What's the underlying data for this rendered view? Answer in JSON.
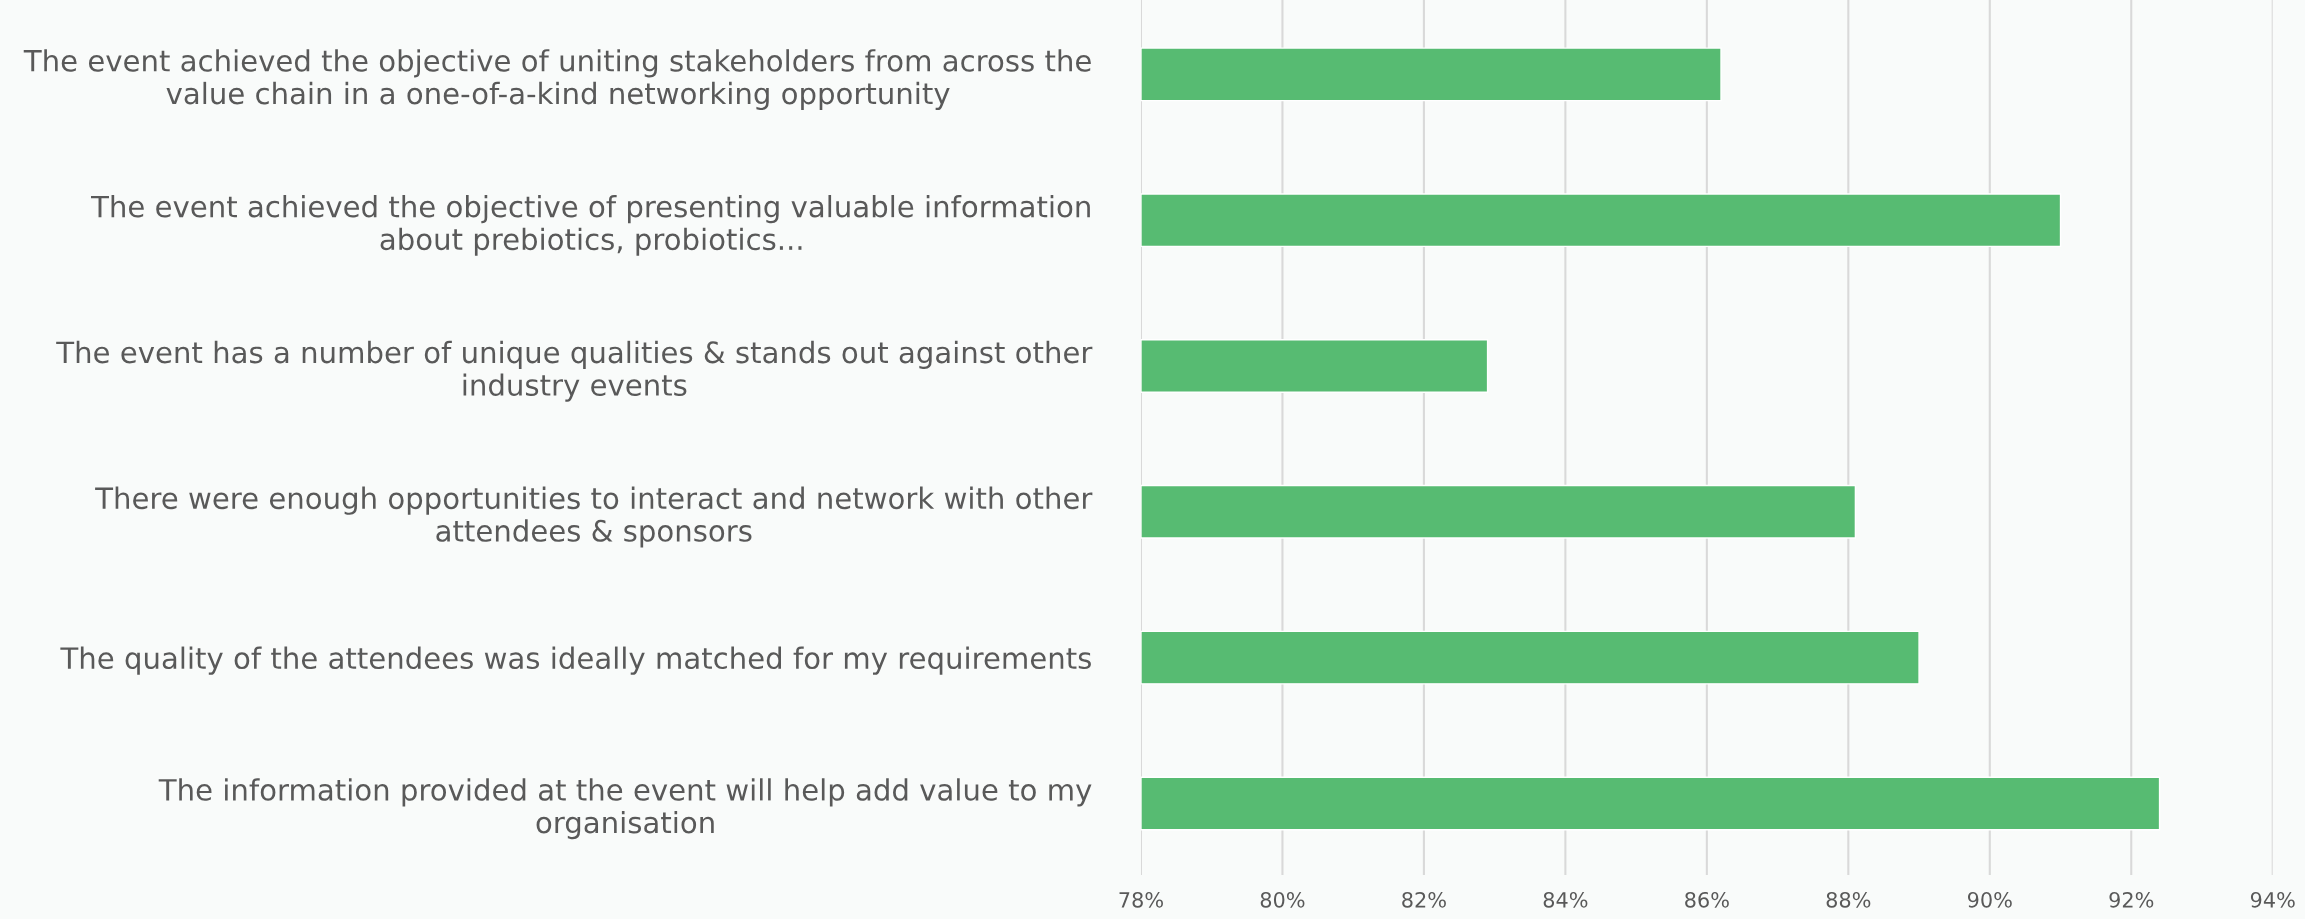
{
  "chart_data": {
    "type": "bar",
    "orientation": "horizontal",
    "categories": [
      "The event achieved the objective of uniting stakeholders from across the\nvalue chain in a one-of-a-kind networking opportunity",
      "The event achieved the objective of presenting valuable information\nabout prebiotics, probiotics...",
      "The event has a number of unique qualities & stands out against other\nindustry events",
      "There were enough opportunities to interact and network with other\nattendees & sponsors",
      "The quality of the attendees was ideally matched for my requirements",
      "The information provided at the event will help add value to my\norganisation"
    ],
    "values": [
      86.2,
      91.0,
      82.9,
      88.1,
      89.0,
      92.4
    ],
    "color": "#57bb72",
    "xlim": [
      78,
      94
    ],
    "xticks": [
      {
        "value": 78,
        "label": "78%"
      },
      {
        "value": 80,
        "label": "80%"
      },
      {
        "value": 82,
        "label": "82%"
      },
      {
        "value": 84,
        "label": "84%"
      },
      {
        "value": 86,
        "label": "86%"
      },
      {
        "value": 88,
        "label": "88%"
      },
      {
        "value": 90,
        "label": "90%"
      },
      {
        "value": 92,
        "label": "92%"
      },
      {
        "value": 94,
        "label": "94%"
      }
    ],
    "grid": "x",
    "legend": false
  }
}
